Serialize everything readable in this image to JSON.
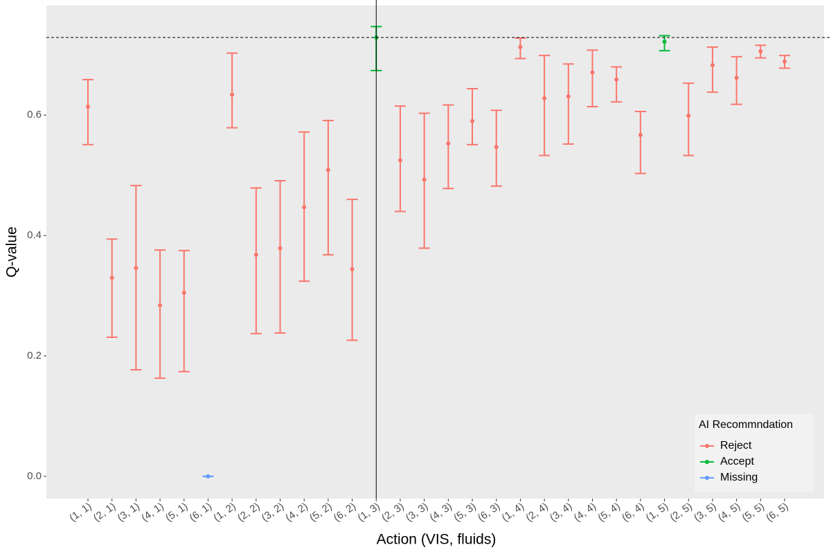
{
  "chart_data": {
    "type": "errorbar",
    "x_label": "Action (VIS, fluids)",
    "y_label": "Q-value",
    "categories": [
      "(1, 1)",
      "(2, 1)",
      "(3, 1)",
      "(4, 1)",
      "(5, 1)",
      "(6, 1)",
      "(1, 2)",
      "(2, 2)",
      "(3, 2)",
      "(4, 2)",
      "(5, 2)",
      "(6, 2)",
      "(1, 3)",
      "(2, 3)",
      "(3, 3)",
      "(4, 3)",
      "(5, 3)",
      "(6, 3)",
      "(1, 4)",
      "(2, 4)",
      "(3, 4)",
      "(4, 4)",
      "(5, 4)",
      "(6, 4)",
      "(1, 5)",
      "(2, 5)",
      "(3, 5)",
      "(4, 5)",
      "(5, 5)",
      "(6, 5)"
    ],
    "values": [
      0.614,
      0.33,
      0.346,
      0.284,
      0.305,
      0.0,
      0.634,
      0.368,
      0.379,
      0.447,
      0.509,
      0.344,
      0.729,
      0.525,
      0.493,
      0.553,
      0.59,
      0.547,
      0.713,
      0.628,
      0.631,
      0.671,
      0.659,
      0.567,
      0.722,
      0.599,
      0.683,
      0.662,
      0.706,
      0.689
    ],
    "lower": [
      0.551,
      0.231,
      0.177,
      0.163,
      0.174,
      0.0,
      0.579,
      0.237,
      0.238,
      0.324,
      0.368,
      0.226,
      0.674,
      0.44,
      0.379,
      0.478,
      0.551,
      0.482,
      0.694,
      0.533,
      0.552,
      0.614,
      0.622,
      0.503,
      0.707,
      0.533,
      0.638,
      0.618,
      0.695,
      0.678
    ],
    "upper": [
      0.659,
      0.394,
      0.483,
      0.376,
      0.375,
      0.0,
      0.703,
      0.479,
      0.491,
      0.572,
      0.591,
      0.46,
      0.747,
      0.615,
      0.603,
      0.617,
      0.644,
      0.608,
      0.728,
      0.699,
      0.685,
      0.708,
      0.68,
      0.606,
      0.732,
      0.653,
      0.713,
      0.697,
      0.716,
      0.699
    ],
    "groups": [
      "Reject",
      "Reject",
      "Reject",
      "Reject",
      "Reject",
      "Missing",
      "Reject",
      "Reject",
      "Reject",
      "Reject",
      "Reject",
      "Reject",
      "Accept",
      "Reject",
      "Reject",
      "Reject",
      "Reject",
      "Reject",
      "Reject",
      "Reject",
      "Reject",
      "Reject",
      "Reject",
      "Reject",
      "Accept",
      "Reject",
      "Reject",
      "Reject",
      "Reject",
      "Reject"
    ],
    "legend": {
      "title": "AI Recommndation",
      "position": "bottom-right",
      "entries": [
        {
          "name": "Reject",
          "color": "#F8766D"
        },
        {
          "name": "Accept",
          "color": "#00BA38"
        },
        {
          "name": "Missing",
          "color": "#619CFF"
        }
      ]
    },
    "hline": 0.729,
    "vline": "(1, 3)",
    "ylim": [
      -0.037,
      0.782
    ],
    "yticks": [
      {
        "value": 0,
        "label": "0.0"
      },
      0.2,
      0.4,
      0.6
    ]
  }
}
